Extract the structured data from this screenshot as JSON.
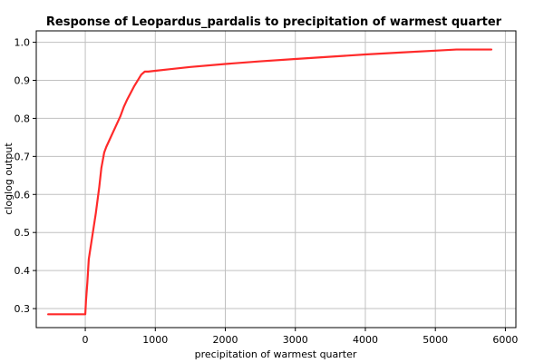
{
  "chart_data": {
    "type": "line",
    "title": "Response of Leopardus_pardalis to precipitation of warmest quarter",
    "xlabel": "precipitation of warmest quarter",
    "ylabel": "cloglog output",
    "xlim": [
      -700,
      6150
    ],
    "ylim": [
      0.25,
      1.03
    ],
    "x_ticks": [
      0,
      1000,
      2000,
      3000,
      4000,
      5000,
      6000
    ],
    "y_ticks": [
      0.3,
      0.4,
      0.5,
      0.6,
      0.7,
      0.8,
      0.9,
      1.0
    ],
    "x_tick_labels": [
      "0",
      "1000",
      "2000",
      "3000",
      "4000",
      "5000",
      "6000"
    ],
    "y_tick_labels": [
      "0.3",
      "0.4",
      "0.5",
      "0.6",
      "0.7",
      "0.8",
      "0.9",
      "1.0"
    ],
    "grid": true,
    "line_color": "#ff2a2a",
    "series": [
      {
        "x": [
          -530,
          0,
          10,
          30,
          50,
          100,
          150,
          200,
          230,
          270,
          300,
          350,
          400,
          450,
          500,
          550,
          600,
          700,
          800,
          850,
          900,
          1000,
          1200,
          1500,
          2000,
          2500,
          3000,
          3500,
          4000,
          4500,
          5000,
          5300,
          5800
        ],
        "y": [
          0.285,
          0.285,
          0.32,
          0.37,
          0.43,
          0.49,
          0.55,
          0.62,
          0.67,
          0.71,
          0.725,
          0.745,
          0.765,
          0.785,
          0.805,
          0.83,
          0.85,
          0.885,
          0.915,
          0.923,
          0.923,
          0.925,
          0.929,
          0.935,
          0.943,
          0.95,
          0.956,
          0.962,
          0.968,
          0.973,
          0.978,
          0.981,
          0.981
        ]
      }
    ]
  }
}
